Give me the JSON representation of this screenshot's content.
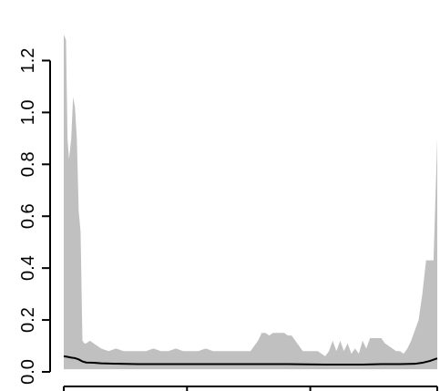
{
  "chart_data": {
    "type": "area",
    "title": "",
    "xlabel": "",
    "ylabel": "",
    "xlim": [
      0,
      1
    ],
    "ylim": [
      0,
      1.3
    ],
    "y_ticks": [
      0.0,
      0.2,
      0.4,
      0.6,
      0.8,
      1.0,
      1.2
    ],
    "y_tick_labels": [
      "0.0",
      "0.2",
      "0.4",
      "0.6",
      "0.8",
      "1.0",
      "1.2"
    ],
    "x_ticks": [
      0.0,
      0.33,
      0.66,
      1.0
    ],
    "x_tick_labels": [
      "",
      "",
      "",
      ""
    ],
    "grid": false,
    "series": [
      {
        "kind": "band",
        "color": "#c0c0c0",
        "x": [
          0.0,
          0.006,
          0.01,
          0.014,
          0.02,
          0.025,
          0.03,
          0.035,
          0.04,
          0.045,
          0.05,
          0.055,
          0.06,
          0.07,
          0.08,
          0.1,
          0.12,
          0.14,
          0.16,
          0.18,
          0.2,
          0.22,
          0.24,
          0.26,
          0.28,
          0.3,
          0.32,
          0.34,
          0.36,
          0.38,
          0.4,
          0.42,
          0.44,
          0.46,
          0.48,
          0.5,
          0.51,
          0.52,
          0.53,
          0.54,
          0.55,
          0.56,
          0.57,
          0.58,
          0.59,
          0.6,
          0.61,
          0.62,
          0.64,
          0.66,
          0.68,
          0.7,
          0.71,
          0.72,
          0.73,
          0.74,
          0.75,
          0.76,
          0.77,
          0.78,
          0.79,
          0.8,
          0.81,
          0.82,
          0.83,
          0.84,
          0.85,
          0.86,
          0.87,
          0.88,
          0.89,
          0.9,
          0.91,
          0.92,
          0.93,
          0.94,
          0.95,
          0.96,
          0.97,
          0.98,
          0.99,
          1.0
        ],
        "upper": [
          1.3,
          1.28,
          0.9,
          0.82,
          0.9,
          1.06,
          1.02,
          0.9,
          0.62,
          0.54,
          0.12,
          0.11,
          0.11,
          0.12,
          0.11,
          0.09,
          0.08,
          0.09,
          0.08,
          0.08,
          0.08,
          0.08,
          0.09,
          0.08,
          0.08,
          0.09,
          0.08,
          0.08,
          0.08,
          0.09,
          0.08,
          0.08,
          0.08,
          0.08,
          0.08,
          0.08,
          0.1,
          0.12,
          0.15,
          0.15,
          0.14,
          0.15,
          0.15,
          0.15,
          0.15,
          0.14,
          0.14,
          0.12,
          0.08,
          0.08,
          0.08,
          0.06,
          0.08,
          0.12,
          0.08,
          0.12,
          0.08,
          0.11,
          0.07,
          0.09,
          0.07,
          0.12,
          0.09,
          0.13,
          0.13,
          0.13,
          0.13,
          0.11,
          0.1,
          0.09,
          0.08,
          0.08,
          0.07,
          0.09,
          0.12,
          0.16,
          0.2,
          0.3,
          0.43,
          0.43,
          0.43,
          0.9
        ],
        "lower": [
          0.01,
          0.01,
          0.01,
          0.01,
          0.01,
          0.01,
          0.01,
          0.01,
          0.01,
          0.01,
          0.01,
          0.01,
          0.01,
          0.01,
          0.01,
          0.01,
          0.01,
          0.01,
          0.01,
          0.01,
          0.01,
          0.01,
          0.01,
          0.01,
          0.01,
          0.01,
          0.01,
          0.01,
          0.01,
          0.01,
          0.01,
          0.01,
          0.01,
          0.01,
          0.01,
          0.01,
          0.01,
          0.01,
          0.01,
          0.01,
          0.01,
          0.01,
          0.01,
          0.01,
          0.01,
          0.01,
          0.01,
          0.01,
          0.01,
          0.01,
          0.01,
          0.01,
          0.01,
          0.01,
          0.01,
          0.01,
          0.01,
          0.01,
          0.01,
          0.01,
          0.01,
          0.01,
          0.01,
          0.01,
          0.01,
          0.01,
          0.01,
          0.01,
          0.01,
          0.01,
          0.01,
          0.01,
          0.01,
          0.01,
          0.01,
          0.01,
          0.01,
          0.01,
          0.01,
          0.01,
          0.01,
          0.01
        ]
      },
      {
        "kind": "line",
        "color": "#000000",
        "x": [
          0.0,
          0.01,
          0.02,
          0.03,
          0.04,
          0.05,
          0.06,
          0.08,
          0.1,
          0.15,
          0.2,
          0.25,
          0.3,
          0.35,
          0.4,
          0.45,
          0.5,
          0.55,
          0.6,
          0.65,
          0.7,
          0.75,
          0.8,
          0.85,
          0.9,
          0.94,
          0.96,
          0.98,
          1.0
        ],
        "values": [
          0.06,
          0.058,
          0.055,
          0.053,
          0.048,
          0.04,
          0.036,
          0.035,
          0.033,
          0.031,
          0.03,
          0.03,
          0.03,
          0.03,
          0.03,
          0.03,
          0.03,
          0.03,
          0.03,
          0.029,
          0.028,
          0.028,
          0.028,
          0.03,
          0.03,
          0.031,
          0.035,
          0.042,
          0.052
        ]
      }
    ]
  }
}
